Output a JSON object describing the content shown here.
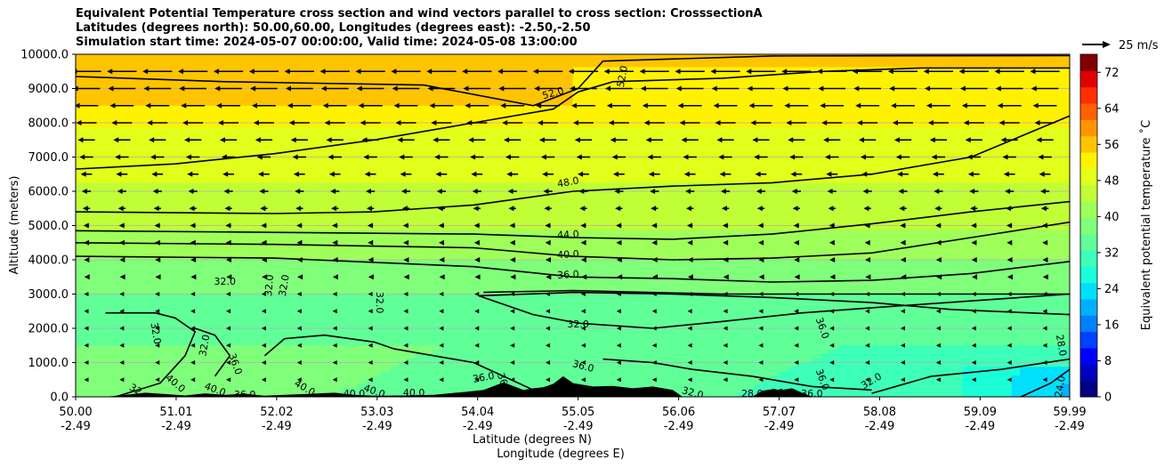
{
  "chart_data": {
    "type": "heatmap",
    "title_lines": [
      "Equivalent Potential Temperature cross section and wind vectors parallel to cross section: CrosssectionA",
      "Latitudes (degrees north): 50.00,60.00, Longitudes (degrees east): -2.50,-2.50",
      "Simulation start time: 2024-05-07 00:00:00, Valid time: 2024-05-08 13:00:00"
    ],
    "xlabel_lines": [
      "Latitude (degrees N)",
      "Longitude (degrees E)"
    ],
    "ylabel": "Altitude (meters)",
    "x_ticks": [
      {
        "lat": "50.00",
        "lon": "-2.49"
      },
      {
        "lat": "51.01",
        "lon": "-2.49"
      },
      {
        "lat": "52.02",
        "lon": "-2.49"
      },
      {
        "lat": "53.03",
        "lon": "-2.49"
      },
      {
        "lat": "54.04",
        "lon": "-2.49"
      },
      {
        "lat": "55.05",
        "lon": "-2.49"
      },
      {
        "lat": "56.06",
        "lon": "-2.49"
      },
      {
        "lat": "57.07",
        "lon": "-2.49"
      },
      {
        "lat": "58.08",
        "lon": "-2.49"
      },
      {
        "lat": "59.09",
        "lon": "-2.49"
      },
      {
        "lat": "59.99",
        "lon": "-2.49"
      }
    ],
    "xlim": [
      50.0,
      59.99
    ],
    "y_ticks": [
      "0.0",
      "1000.0",
      "2000.0",
      "3000.0",
      "4000.0",
      "5000.0",
      "6000.0",
      "7000.0",
      "8000.0",
      "9000.0",
      "10000.0"
    ],
    "ylim": [
      0,
      10000
    ],
    "grid": "horizontal",
    "colorbar": {
      "label": "Equivalent potential temperature ˚C",
      "ticks": [
        "0",
        "8",
        "16",
        "24",
        "32",
        "40",
        "48",
        "56",
        "64",
        "72"
      ],
      "range": [
        0,
        76
      ],
      "colors": [
        "#000080",
        "#0000c0",
        "#0000ff",
        "#0040ff",
        "#0080ff",
        "#00b0ff",
        "#00e0fb",
        "#1affd8",
        "#3dffb9",
        "#60ff97",
        "#80ff7a",
        "#9fff5a",
        "#c0ff36",
        "#e0ff1a",
        "#fff200",
        "#ffc400",
        "#ff9400",
        "#ff6000",
        "#ff2e00",
        "#e00000",
        "#800000"
      ]
    },
    "wind_key": {
      "label": "25 m/s",
      "speed": 25
    },
    "contour_levels": [
      24.0,
      28.0,
      32.0,
      36.0,
      40.0,
      44.0,
      48.0,
      52.0
    ],
    "contours": [
      {
        "level": 52.0,
        "points": [
          [
            50.0,
            9350
          ],
          [
            51.5,
            9200
          ],
          [
            53.5,
            9100
          ],
          [
            54.6,
            8500
          ],
          [
            55.05,
            9000
          ],
          [
            55.3,
            9800
          ],
          [
            57.0,
            9950
          ],
          [
            59.99,
            9960
          ]
        ]
      },
      {
        "level": 48.0,
        "points": [
          [
            50.0,
            6650
          ],
          [
            51.0,
            6800
          ],
          [
            52.0,
            7100
          ],
          [
            53.0,
            7500
          ],
          [
            54.0,
            8000
          ],
          [
            54.8,
            8400
          ],
          [
            55.05,
            8900
          ],
          [
            55.4,
            9200
          ],
          [
            56.5,
            9300
          ],
          [
            57.5,
            9500
          ],
          [
            58.5,
            9600
          ],
          [
            59.99,
            9600
          ]
        ]
      },
      {
        "level": 48.0,
        "points": [
          [
            50.0,
            5400
          ],
          [
            52.0,
            5350
          ],
          [
            53.0,
            5400
          ],
          [
            54.0,
            5600
          ],
          [
            55.0,
            6000
          ],
          [
            56.0,
            6150
          ],
          [
            57.0,
            6250
          ],
          [
            58.0,
            6500
          ],
          [
            59.0,
            7000
          ],
          [
            59.99,
            8200
          ]
        ]
      },
      {
        "level": 44.0,
        "points": [
          [
            50.0,
            4850
          ],
          [
            52.0,
            4800
          ],
          [
            54.0,
            4750
          ],
          [
            55.0,
            4650
          ],
          [
            56.0,
            4600
          ],
          [
            57.0,
            4750
          ],
          [
            58.0,
            5050
          ],
          [
            59.0,
            5400
          ],
          [
            59.99,
            5700
          ]
        ]
      },
      {
        "level": 40.0,
        "points": [
          [
            50.0,
            4500
          ],
          [
            52.0,
            4450
          ],
          [
            54.0,
            4350
          ],
          [
            55.0,
            4100
          ],
          [
            56.0,
            4000
          ],
          [
            57.0,
            4050
          ],
          [
            58.0,
            4200
          ],
          [
            59.0,
            4650
          ],
          [
            59.99,
            5100
          ]
        ]
      },
      {
        "level": 36.0,
        "points": [
          [
            50.0,
            4100
          ],
          [
            52.0,
            4050
          ],
          [
            54.0,
            3800
          ],
          [
            55.0,
            3500
          ],
          [
            56.0,
            3450
          ],
          [
            57.0,
            3350
          ],
          [
            58.0,
            3400
          ],
          [
            59.0,
            3600
          ],
          [
            59.99,
            3950
          ]
        ]
      },
      {
        "level": 32.0,
        "points": [
          [
            54.05,
            2950
          ],
          [
            54.6,
            2400
          ],
          [
            55.05,
            2150
          ],
          [
            55.8,
            2000
          ],
          [
            56.5,
            2200
          ],
          [
            57.3,
            2450
          ],
          [
            58.0,
            2600
          ],
          [
            59.0,
            2800
          ],
          [
            59.99,
            3000
          ]
        ]
      },
      {
        "level": 32.0,
        "points": [
          [
            54.05,
            2950
          ],
          [
            55.0,
            3050
          ],
          [
            56.0,
            3000
          ],
          [
            57.0,
            2900
          ],
          [
            58.0,
            2750
          ],
          [
            58.8,
            2550
          ],
          [
            59.99,
            2400
          ]
        ]
      },
      {
        "level": 36.0,
        "points": [
          [
            54.1,
            3050
          ],
          [
            55.0,
            3100
          ],
          [
            56.5,
            3000
          ],
          [
            58.0,
            3000
          ],
          [
            59.99,
            3000
          ]
        ]
      },
      {
        "level": 32.0,
        "points": [
          [
            50.3,
            2450
          ],
          [
            50.8,
            2450
          ],
          [
            51.0,
            2300
          ],
          [
            51.2,
            1900
          ],
          [
            51.1,
            1200
          ],
          [
            50.85,
            400
          ],
          [
            50.4,
            0
          ]
        ]
      },
      {
        "level": 32.0,
        "points": [
          [
            51.2,
            2000
          ],
          [
            51.4,
            1800
          ],
          [
            51.55,
            1200
          ],
          [
            51.4,
            600
          ]
        ]
      },
      {
        "level": 36.0,
        "points": [
          [
            51.9,
            1200
          ],
          [
            52.1,
            1700
          ],
          [
            52.5,
            1800
          ],
          [
            53.0,
            1600
          ],
          [
            53.2,
            1400
          ],
          [
            54.0,
            1000
          ],
          [
            54.3,
            600
          ],
          [
            54.6,
            200
          ]
        ]
      },
      {
        "level": 36.0,
        "points": [
          [
            55.3,
            1100
          ],
          [
            55.8,
            1000
          ],
          [
            56.2,
            800
          ],
          [
            56.8,
            600
          ],
          [
            57.4,
            300
          ],
          [
            58.0,
            200
          ]
        ]
      },
      {
        "level": 32.0,
        "points": [
          [
            58.0,
            100
          ],
          [
            58.6,
            600
          ],
          [
            59.3,
            800
          ],
          [
            59.99,
            1100
          ]
        ]
      },
      {
        "level": 28.0,
        "points": [
          [
            59.5,
            0
          ],
          [
            59.8,
            400
          ],
          [
            59.99,
            800
          ]
        ]
      }
    ],
    "contour_labels": [
      {
        "text": "52.0",
        "x": 55.5,
        "y": 9350,
        "rot": -80
      },
      {
        "text": "52.0",
        "x": 54.8,
        "y": 8850,
        "rot": -15
      },
      {
        "text": "48.0",
        "x": 54.95,
        "y": 6250,
        "rot": -10
      },
      {
        "text": "44.0",
        "x": 54.95,
        "y": 4720,
        "rot": -3
      },
      {
        "text": "40.0",
        "x": 54.95,
        "y": 4140,
        "rot": -3
      },
      {
        "text": "36.0",
        "x": 54.95,
        "y": 3550,
        "rot": -3
      },
      {
        "text": "32.0",
        "x": 55.05,
        "y": 2100,
        "rot": 0
      },
      {
        "text": "32.0",
        "x": 53.05,
        "y": 2750,
        "rot": 90
      },
      {
        "text": "32.0",
        "x": 51.5,
        "y": 3350,
        "rot": 0
      },
      {
        "text": "32.0",
        "x": 51.95,
        "y": 3250,
        "rot": -85
      },
      {
        "text": "32.0",
        "x": 52.1,
        "y": 3250,
        "rot": -80
      },
      {
        "text": "32.0",
        "x": 50.8,
        "y": 1850,
        "rot": 80
      },
      {
        "text": "32.0",
        "x": 51.3,
        "y": 1500,
        "rot": -80
      },
      {
        "text": "36.0",
        "x": 51.6,
        "y": 950,
        "rot": 70
      },
      {
        "text": "36.0",
        "x": 55.1,
        "y": 880,
        "rot": 15
      },
      {
        "text": "36.0",
        "x": 54.1,
        "y": 550,
        "rot": -10
      },
      {
        "text": "36.0",
        "x": 57.5,
        "y": 2000,
        "rot": 70
      },
      {
        "text": "32.0",
        "x": 58.0,
        "y": 450,
        "rot": -30
      },
      {
        "text": "28.0",
        "x": 59.9,
        "y": 1500,
        "rot": 80
      },
      {
        "text": "24.0",
        "x": 59.9,
        "y": 300,
        "rot": -80
      },
      {
        "text": "40.0",
        "x": 51.0,
        "y": 380,
        "rot": 40
      },
      {
        "text": "40.0",
        "x": 51.4,
        "y": 200,
        "rot": 20
      },
      {
        "text": "40.0",
        "x": 52.3,
        "y": 250,
        "rot": 30
      },
      {
        "text": "40.0",
        "x": 53.0,
        "y": 150,
        "rot": 20
      },
      {
        "text": "40.0",
        "x": 53.4,
        "y": 100,
        "rot": 0
      },
      {
        "text": "36.0",
        "x": 51.7,
        "y": 50,
        "rot": 0
      },
      {
        "text": "32",
        "x": 50.6,
        "y": 200,
        "rot": 30
      },
      {
        "text": "40.0",
        "x": 52.8,
        "y": 80,
        "rot": 0
      },
      {
        "text": "36.0",
        "x": 54.3,
        "y": 380,
        "rot": 70
      },
      {
        "text": "32.0",
        "x": 56.2,
        "y": 100,
        "rot": 15
      },
      {
        "text": "28.0",
        "x": 56.8,
        "y": 80,
        "rot": 0
      },
      {
        "text": "36.0",
        "x": 57.4,
        "y": 80,
        "rot": 0
      },
      {
        "text": "36.0",
        "x": 57.1,
        "y": 100,
        "rot": 0
      },
      {
        "text": "36.0",
        "x": 57.5,
        "y": 500,
        "rot": 70
      }
    ],
    "terrain": [
      [
        50.0,
        0
      ],
      [
        50.3,
        0
      ],
      [
        50.5,
        60
      ],
      [
        50.7,
        120
      ],
      [
        50.9,
        80
      ],
      [
        51.1,
        40
      ],
      [
        51.3,
        100
      ],
      [
        51.5,
        60
      ],
      [
        51.7,
        90
      ],
      [
        51.9,
        30
      ],
      [
        52.1,
        60
      ],
      [
        52.3,
        80
      ],
      [
        52.6,
        120
      ],
      [
        52.8,
        60
      ],
      [
        53.0,
        30
      ],
      [
        53.3,
        40
      ],
      [
        53.6,
        60
      ],
      [
        53.9,
        140
      ],
      [
        54.1,
        200
      ],
      [
        54.3,
        420
      ],
      [
        54.5,
        200
      ],
      [
        54.6,
        250
      ],
      [
        54.7,
        280
      ],
      [
        54.8,
        380
      ],
      [
        54.9,
        600
      ],
      [
        55.0,
        400
      ],
      [
        55.2,
        300
      ],
      [
        55.4,
        320
      ],
      [
        55.6,
        250
      ],
      [
        55.8,
        300
      ],
      [
        56.0,
        200
      ],
      [
        56.1,
        0
      ],
      [
        56.8,
        0
      ],
      [
        56.9,
        180
      ],
      [
        57.0,
        220
      ],
      [
        57.1,
        200
      ],
      [
        57.2,
        250
      ],
      [
        57.3,
        120
      ],
      [
        57.4,
        0
      ],
      [
        59.99,
        0
      ]
    ],
    "wind": {
      "levels": [
        500,
        1000,
        1500,
        2000,
        2500,
        3000,
        3500,
        4000,
        4500,
        5000,
        5500,
        6000,
        6500,
        7000,
        7500,
        8000,
        8500,
        9000,
        9500
      ],
      "speed_profile": [
        {
          "alt": 500,
          "u": -3
        },
        {
          "alt": 3000,
          "u": -3
        },
        {
          "alt": 4000,
          "u": -4
        },
        {
          "alt": 5000,
          "u": -5
        },
        {
          "alt": 6000,
          "u": -8
        },
        {
          "alt": 7000,
          "u": -12
        },
        {
          "alt": 8000,
          "u": -18
        },
        {
          "alt": 9000,
          "u": -24
        },
        {
          "alt": 9500,
          "u": -26
        }
      ],
      "x_columns": 28
    }
  }
}
